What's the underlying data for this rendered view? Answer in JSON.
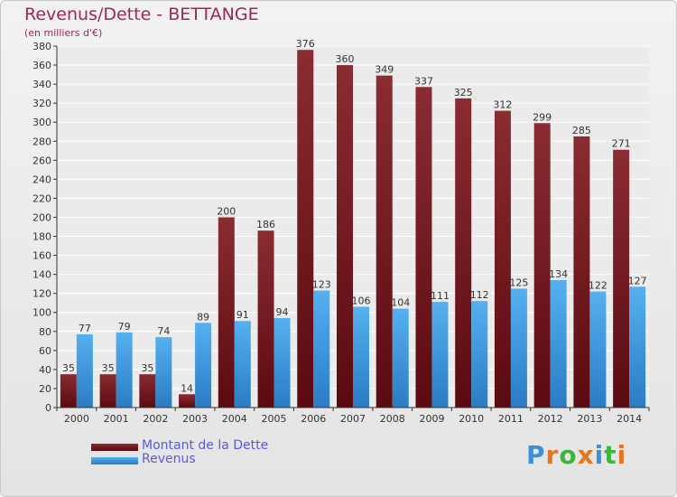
{
  "page": {
    "title": "Revenus/Dette - BETTANGE",
    "subtitle": "(en milliers d'€)"
  },
  "chart_data": {
    "type": "bar",
    "categories": [
      "2000",
      "2001",
      "2002",
      "2003",
      "2004",
      "2005",
      "2006",
      "2007",
      "2008",
      "2009",
      "2010",
      "2011",
      "2012",
      "2013",
      "2014"
    ],
    "series": [
      {
        "name": "Montant de la Dette",
        "color": "#7a1a22",
        "values": [
          35,
          35,
          35,
          14,
          200,
          186,
          376,
          360,
          349,
          337,
          325,
          312,
          299,
          285,
          271
        ]
      },
      {
        "name": "Revenus",
        "color": "#3d9be0",
        "values": [
          77,
          79,
          74,
          89,
          91,
          94,
          123,
          106,
          104,
          111,
          112,
          125,
          134,
          122,
          127
        ]
      }
    ],
    "ylim": [
      0,
      380
    ],
    "yticks": [
      0,
      20,
      40,
      60,
      80,
      100,
      120,
      140,
      160,
      180,
      200,
      220,
      240,
      260,
      280,
      300,
      320,
      340,
      360,
      380
    ],
    "grid": true,
    "legend_position": "bottom-left"
  },
  "logo": {
    "text": "Proxiti",
    "letter_colors": [
      "#3d8fd6",
      "#e8741e",
      "#3db53d",
      "#e8741e",
      "#3d8fd6",
      "#3db53d",
      "#e8741e"
    ]
  }
}
